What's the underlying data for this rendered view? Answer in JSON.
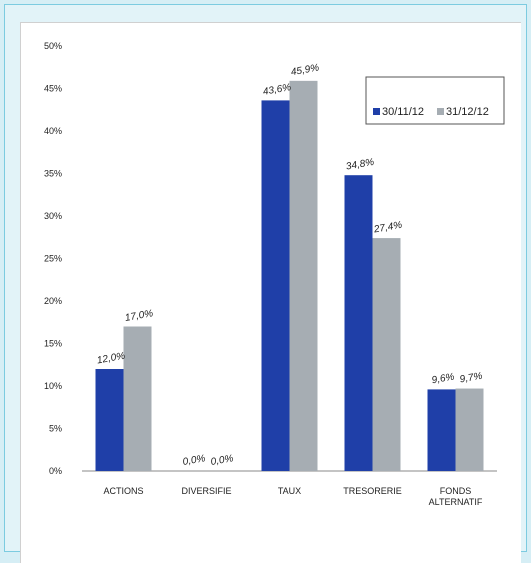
{
  "chart_data": {
    "type": "bar",
    "title": "",
    "xlabel": "",
    "ylabel": "",
    "categories": [
      [
        "ACTIONS"
      ],
      [
        "DIVERSIFIE"
      ],
      [
        "TAUX"
      ],
      [
        "TRESORERIE"
      ],
      [
        "FONDS",
        "ALTERNATIF"
      ]
    ],
    "series": [
      {
        "name": "30/11/12",
        "color": "#1f3fa8",
        "values": [
          12.0,
          0.0,
          43.6,
          34.8,
          9.6
        ],
        "labels": [
          "12,0%",
          "0,0%",
          "43,6%",
          "34,8%",
          "9,6%"
        ]
      },
      {
        "name": "31/12/12",
        "color": "#a6adb3",
        "values": [
          17.0,
          0.0,
          45.9,
          27.4,
          9.7
        ],
        "labels": [
          "17,0%",
          "0,0%",
          "45,9%",
          "27,4%",
          "9,7%"
        ]
      }
    ],
    "ylim": [
      0,
      50
    ],
    "yticks": [
      "0%",
      "5%",
      "10%",
      "15%",
      "20%",
      "25%",
      "30%",
      "35%",
      "40%",
      "45%",
      "50%"
    ],
    "grid": false,
    "legend_position": "top-right"
  }
}
